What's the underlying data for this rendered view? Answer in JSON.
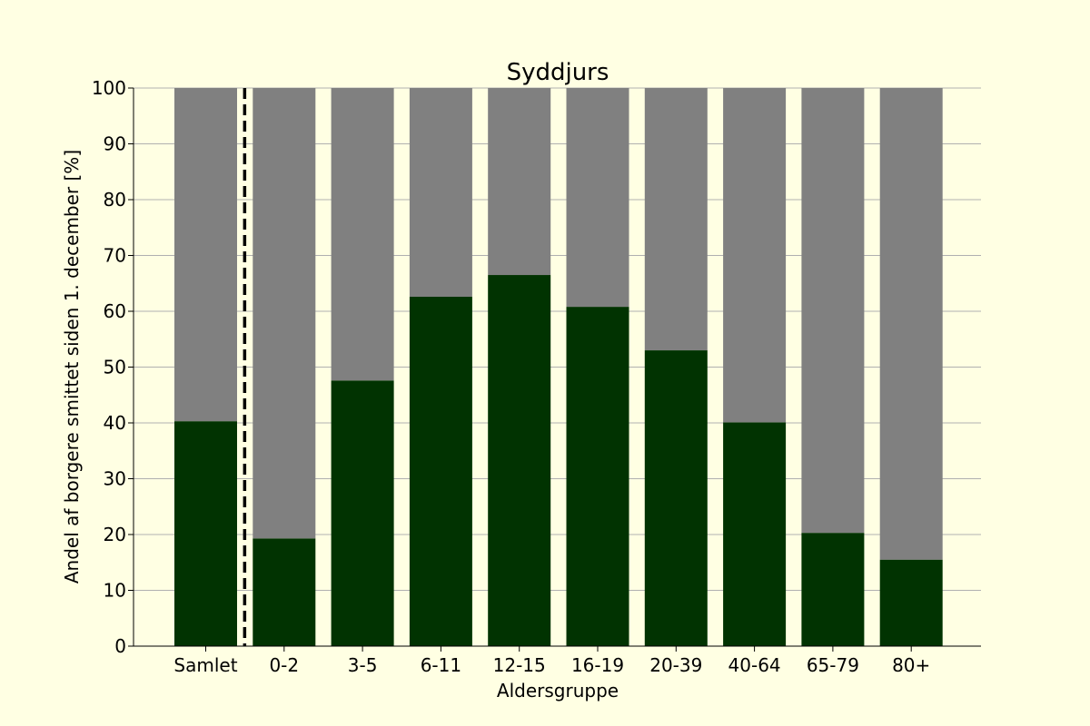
{
  "chart_data": {
    "type": "bar",
    "stacked": true,
    "title": "Syddjurs",
    "xlabel": "Aldersgruppe",
    "ylabel": "Andel af borgere smittet siden 1. december [%]",
    "categories": [
      "Samlet",
      "0-2",
      "3-5",
      "6-11",
      "12-15",
      "16-19",
      "20-39",
      "40-64",
      "65-79",
      "80+"
    ],
    "series": [
      {
        "values": [
          40.3,
          19.3,
          47.6,
          62.6,
          66.5,
          60.8,
          53.0,
          40.1,
          20.3,
          15.5
        ],
        "color": "#013301"
      },
      {
        "values": [
          59.7,
          80.7,
          52.4,
          37.4,
          33.5,
          39.2,
          47.0,
          59.9,
          79.7,
          84.5
        ],
        "color": "#808080"
      }
    ],
    "ylim": [
      0,
      100
    ],
    "yticks": [
      0,
      10,
      20,
      30,
      40,
      50,
      60,
      70,
      80,
      90,
      100
    ],
    "grid": "horizontal",
    "separator_after_category": "Samlet"
  },
  "colors": {
    "background": "#ffffe3",
    "grid": "#b0b0b0"
  }
}
